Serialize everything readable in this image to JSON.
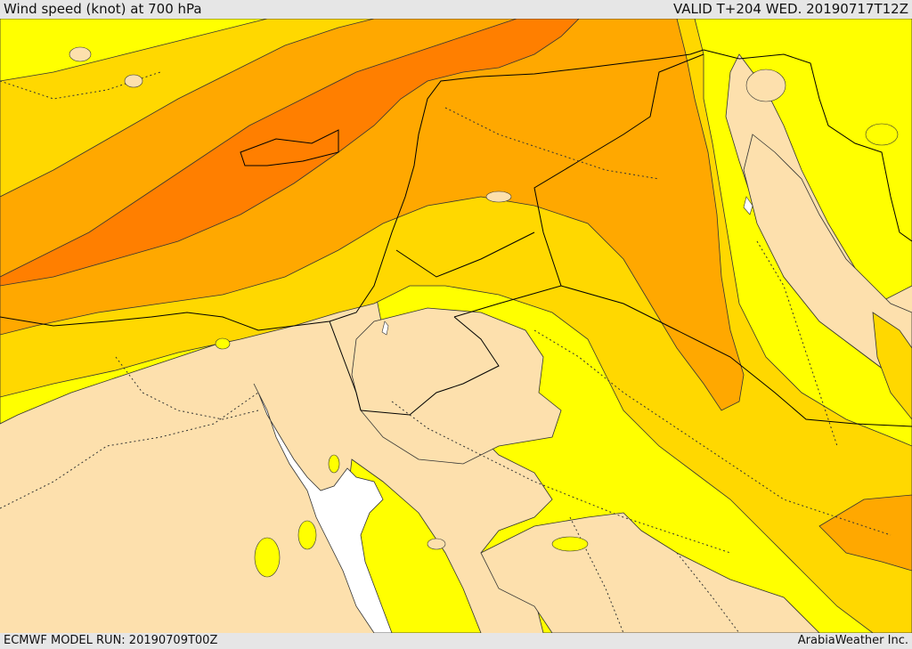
{
  "header": {
    "title": "Wind speed (knot) at 700 hPa",
    "valid": "VALID T+204 WED. 20190717T12Z"
  },
  "footer": {
    "model_run": "ECMWF MODEL RUN: 20190709T00Z",
    "credit": "ArabiaWeather Inc."
  },
  "colors": {
    "band_lowest": "#fde0ad",
    "band_low": "#ffff00",
    "band_mid": "#ffd800",
    "band_high": "#ffa800",
    "band_highest": "#ff7f00",
    "water": "#ffffff",
    "contour": "#333333",
    "border": "#000000"
  }
}
